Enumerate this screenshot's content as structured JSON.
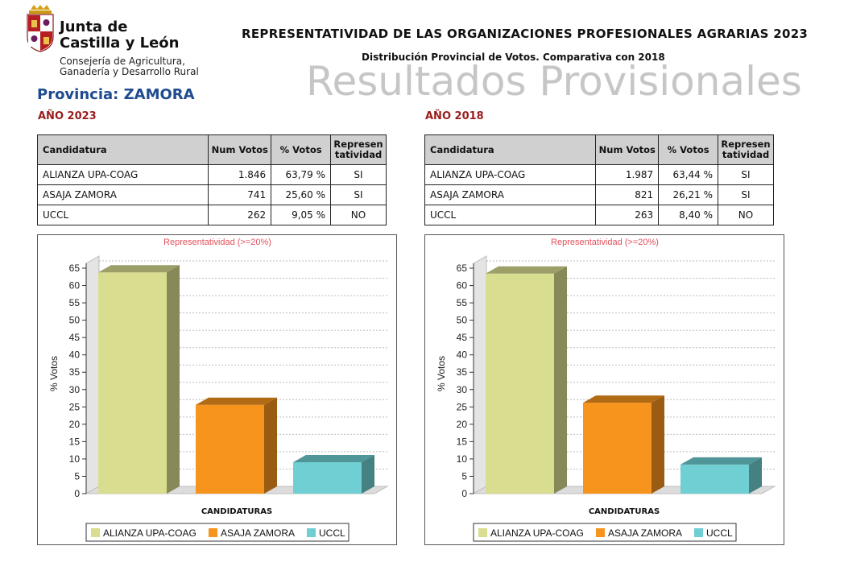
{
  "header": {
    "logo_line1": "Junta de",
    "logo_line2": "Castilla y León",
    "logo_sub1": "Consejería de Agricultura,",
    "logo_sub2": "Ganadería y Desarrollo Rural",
    "title": "REPRESENTATIVIDAD DE LAS ORGANIZACIONES PROFESIONALES AGRARIAS 2023",
    "subtitle": "Distribución Provincial de Votos. Comparativa con 2018",
    "watermark": "Resultados Provisionales",
    "provincia": "Provincia: ZAMORA"
  },
  "table_headers": {
    "candidatura": "Candidatura",
    "num_votos": "Num Votos",
    "pct_votos": "% Votos",
    "repr_line1": "Represen",
    "repr_line2": "tatividad"
  },
  "panels": [
    {
      "year_label": "AÑO 2023",
      "rows": [
        {
          "candidatura": "ALIANZA UPA-COAG",
          "num_votos": "1.846",
          "pct_votos": "63,79 %",
          "representatividad": "SI"
        },
        {
          "candidatura": "ASAJA ZAMORA",
          "num_votos": "741",
          "pct_votos": "25,60 %",
          "representatividad": "SI"
        },
        {
          "candidatura": "UCCL",
          "num_votos": "262",
          "pct_votos": "9,05 %",
          "representatividad": "NO"
        }
      ]
    },
    {
      "year_label": "AÑO 2018",
      "rows": [
        {
          "candidatura": "ALIANZA UPA-COAG",
          "num_votos": "1.987",
          "pct_votos": "63,44 %",
          "representatividad": "SI"
        },
        {
          "candidatura": "ASAJA ZAMORA",
          "num_votos": "821",
          "pct_votos": "26,21 %",
          "representatividad": "SI"
        },
        {
          "candidatura": "UCCL",
          "num_votos": "263",
          "pct_votos": "8,40 %",
          "representatividad": "NO"
        }
      ]
    }
  ],
  "chart_data": [
    {
      "type": "bar",
      "title": "Representatividad (>=20%)",
      "xlabel": "CANDIDATURAS",
      "ylabel": "% Votos",
      "categories": [
        "ALIANZA UPA-COAG",
        "ASAJA ZAMORA",
        "UCCL"
      ],
      "values": [
        63.79,
        25.6,
        9.05
      ],
      "colors": [
        "#d9dd8f",
        "#f7941d",
        "#6fcfd2"
      ],
      "ylim": [
        0,
        65
      ],
      "yticks": [
        0,
        5,
        10,
        15,
        20,
        25,
        30,
        35,
        40,
        45,
        50,
        55,
        60,
        65
      ],
      "grid": true,
      "legend": "bottom"
    },
    {
      "type": "bar",
      "title": "Representatividad (>=20%)",
      "xlabel": "CANDIDATURAS",
      "ylabel": "% Votos",
      "categories": [
        "ALIANZA UPA-COAG",
        "ASAJA ZAMORA",
        "UCCL"
      ],
      "values": [
        63.44,
        26.21,
        8.4
      ],
      "colors": [
        "#d9dd8f",
        "#f7941d",
        "#6fcfd2"
      ],
      "ylim": [
        0,
        65
      ],
      "yticks": [
        0,
        5,
        10,
        15,
        20,
        25,
        30,
        35,
        40,
        45,
        50,
        55,
        60,
        65
      ],
      "grid": true,
      "legend": "bottom"
    }
  ]
}
